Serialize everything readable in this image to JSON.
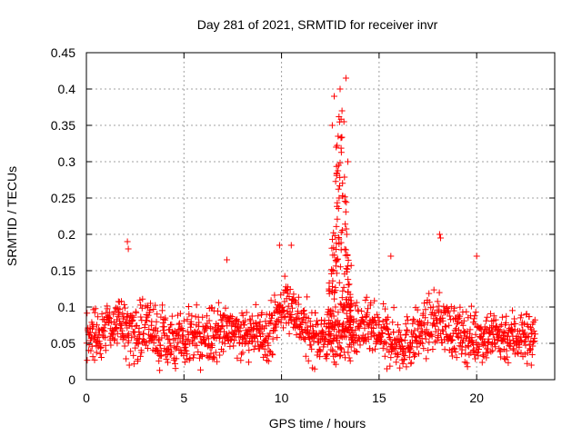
{
  "chart_data": {
    "type": "scatter",
    "title": "Day 281 of 2021, SRMTID for receiver invr",
    "xlabel": "GPS time / hours",
    "ylabel": "SRMTID / TECUs",
    "xlim": [
      0,
      24
    ],
    "ylim": [
      0,
      0.45
    ],
    "xticks": [
      0,
      5,
      10,
      15,
      20
    ],
    "yticks": [
      0,
      0.05,
      0.1,
      0.15,
      0.2,
      0.25,
      0.3,
      0.35,
      0.4,
      0.45
    ],
    "xtick_labels": [
      "0",
      "5",
      "10",
      "15",
      "20"
    ],
    "ytick_labels": [
      "0",
      "0.05",
      "0.1",
      "0.15",
      "0.2",
      "0.25",
      "0.3",
      "0.35",
      "0.4",
      "0.45"
    ],
    "grid": true,
    "marker": "plus",
    "color": "#ff0000",
    "x_range_of_data": [
      0,
      23
    ],
    "typical_y": 0.06,
    "notable_points": [
      {
        "x": 2.1,
        "y": 0.19
      },
      {
        "x": 2.15,
        "y": 0.18
      },
      {
        "x": 12.7,
        "y": 0.39
      },
      {
        "x": 13.0,
        "y": 0.4
      },
      {
        "x": 13.3,
        "y": 0.415
      },
      {
        "x": 13.1,
        "y": 0.37
      },
      {
        "x": 12.6,
        "y": 0.35
      },
      {
        "x": 13.2,
        "y": 0.355
      },
      {
        "x": 12.9,
        "y": 0.335
      },
      {
        "x": 13.4,
        "y": 0.3
      },
      {
        "x": 12.8,
        "y": 0.32
      },
      {
        "x": 9.9,
        "y": 0.185
      },
      {
        "x": 10.5,
        "y": 0.185
      },
      {
        "x": 18.1,
        "y": 0.2
      },
      {
        "x": 18.15,
        "y": 0.195
      },
      {
        "x": 15.6,
        "y": 0.17
      },
      {
        "x": 20.0,
        "y": 0.17
      },
      {
        "x": 7.2,
        "y": 0.165
      },
      {
        "x": 15.4,
        "y": 0.015
      },
      {
        "x": 2.2,
        "y": 0.02
      },
      {
        "x": 22.8,
        "y": 0.02
      }
    ]
  }
}
